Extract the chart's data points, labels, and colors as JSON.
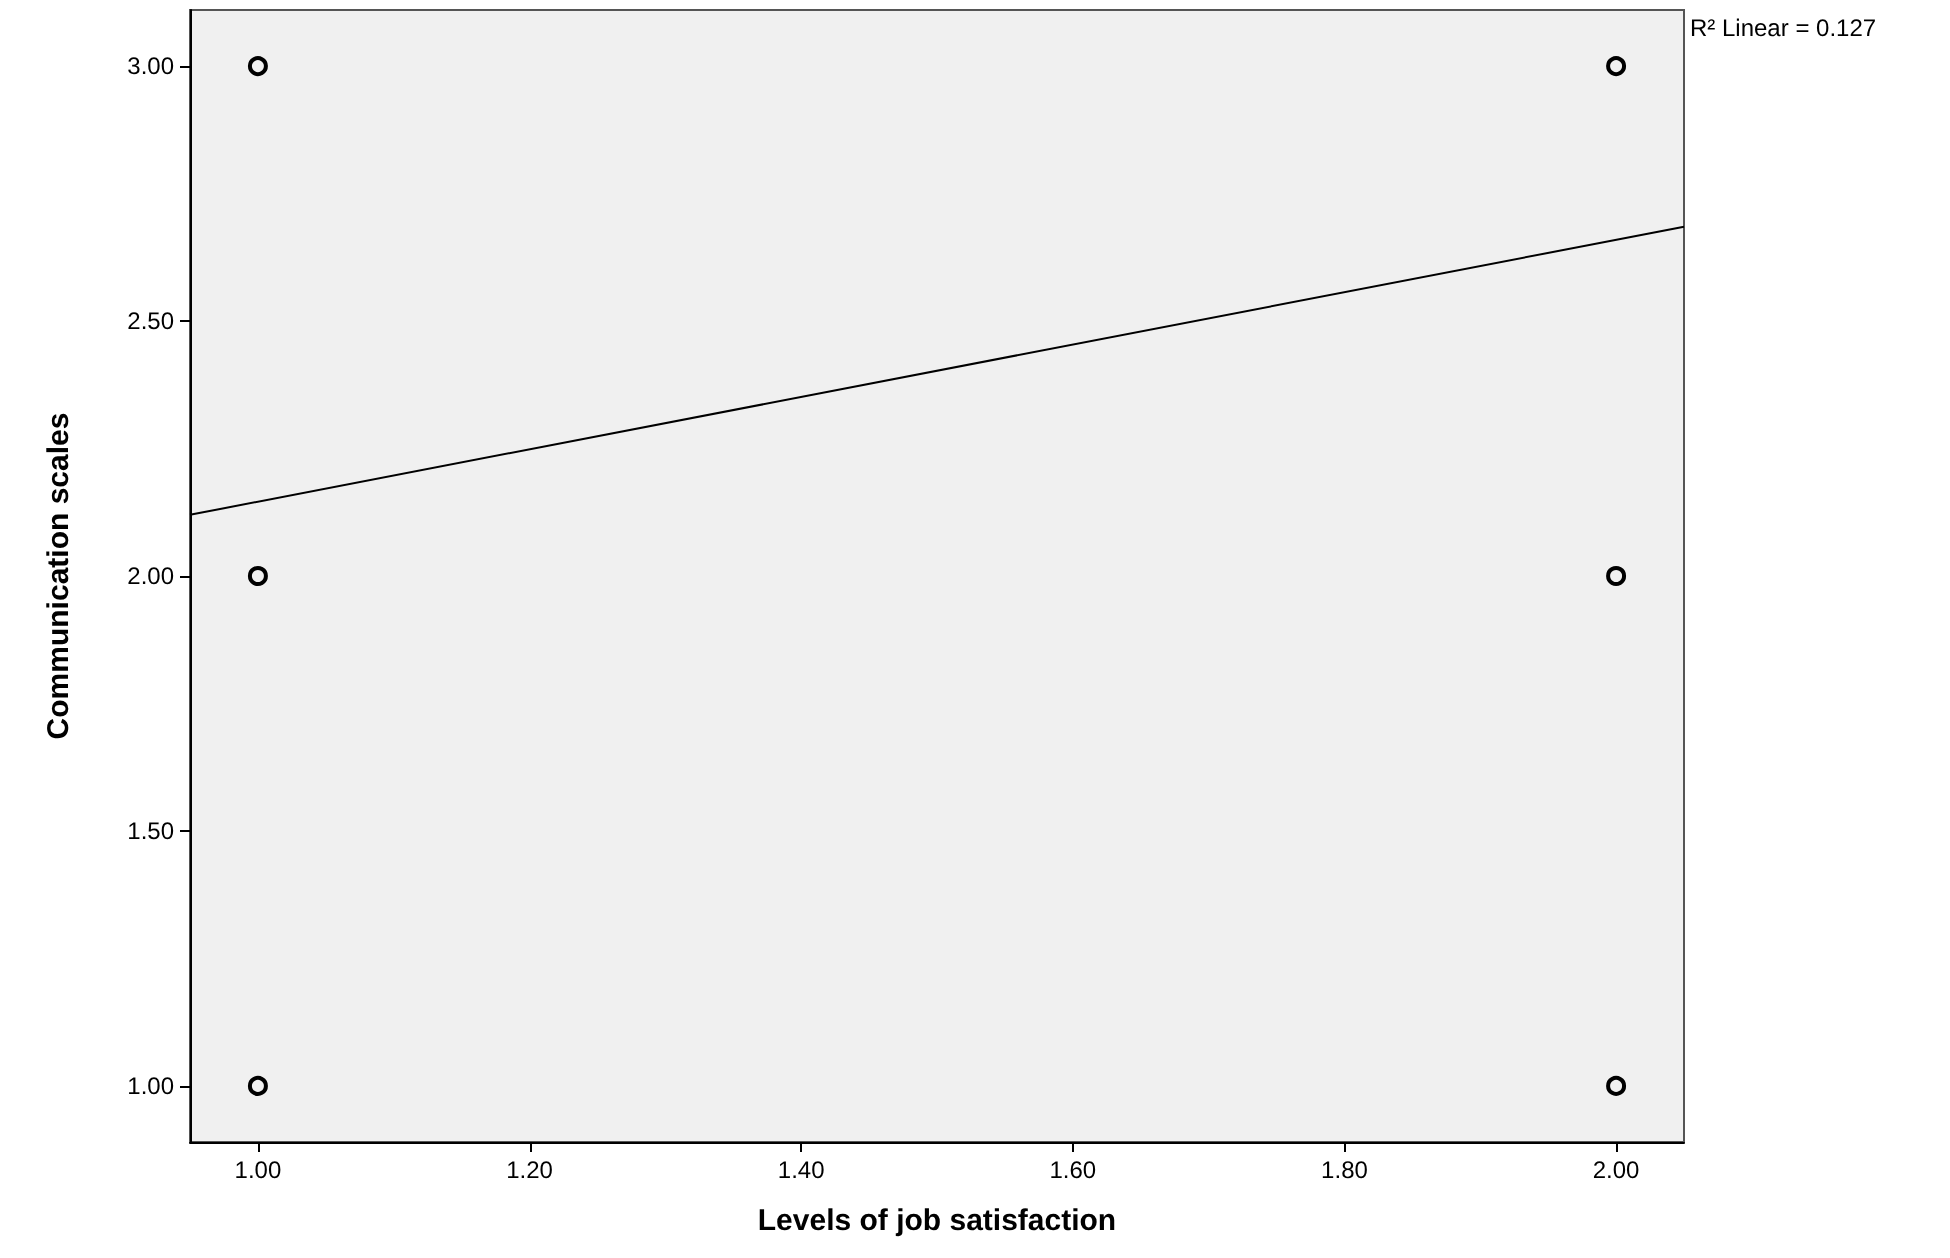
{
  "chart_data": {
    "type": "scatter",
    "xlabel": "Levels of job satisfaction",
    "ylabel": "Communication scales",
    "xlim": [
      0.95,
      2.05
    ],
    "xticks": [
      {
        "value": 1,
        "label": "1.00"
      },
      {
        "value": 1.2,
        "label": "1.20"
      },
      {
        "value": 1.4,
        "label": "1.40"
      },
      {
        "value": 1.6,
        "label": "1.60"
      },
      {
        "value": 1.8,
        "label": "1.80"
      },
      {
        "value": 2,
        "label": "2.00"
      }
    ],
    "ylim": [
      0.89,
      3.11
    ],
    "yticks": [
      {
        "value": 1,
        "label": "1.00"
      },
      {
        "value": 1.5,
        "label": "1.50"
      },
      {
        "value": 2,
        "label": "2.00"
      },
      {
        "value": 2.5,
        "label": "2.50"
      },
      {
        "value": 3,
        "label": "3.00"
      }
    ],
    "grid": false,
    "marker": "circle",
    "annotations": [
      "R² Linear = 0.127"
    ],
    "series": [
      {
        "color": "#000000",
        "x": [
          1,
          1,
          1,
          2,
          2,
          2
        ],
        "values": [
          3,
          2,
          1,
          3,
          2,
          1
        ]
      },
      {
        "type": "line",
        "color": "#000000",
        "marker": "none",
        "line_style": "solid",
        "x": [
          0.95,
          2.05
        ],
        "values": [
          2.12,
          2.685
        ]
      }
    ]
  }
}
